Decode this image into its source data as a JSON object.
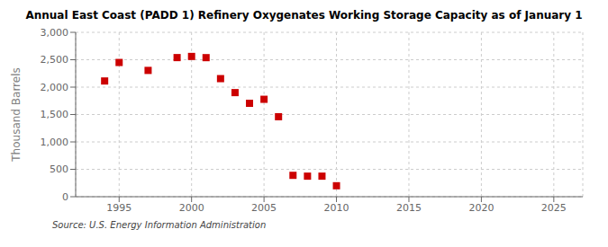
{
  "chart_data": {
    "type": "scatter",
    "title": "Annual East Coast (PADD 1) Refinery Oxygenates Working Storage Capacity as of January 1",
    "ylabel": "Thousand Barrels",
    "annotation": "Source: U.S. Energy Information Administration",
    "x": [
      1994,
      1995,
      1997,
      1999,
      2000,
      2001,
      2002,
      2003,
      2004,
      2005,
      2006,
      2007,
      2008,
      2009,
      2010
    ],
    "values": [
      2112,
      2450,
      2305,
      2539,
      2560,
      2538,
      2155,
      1900,
      1705,
      1778,
      1460,
      390,
      375,
      375,
      200
    ],
    "color": "#cc0000",
    "marker": "square",
    "xlim": [
      1992,
      2027
    ],
    "ylim": [
      0,
      3000
    ],
    "xticks": [
      1995,
      2000,
      2005,
      2010,
      2015,
      2020,
      2025
    ],
    "yticks": [
      0,
      500,
      {
        "value": 1000,
        "label": "1,000"
      },
      {
        "value": 1500,
        "label": "1,500"
      },
      {
        "value": 2000,
        "label": "2,000"
      },
      {
        "value": 2500,
        "label": "2,500"
      },
      {
        "value": 3000,
        "label": "3,000"
      }
    ],
    "grid": true
  }
}
